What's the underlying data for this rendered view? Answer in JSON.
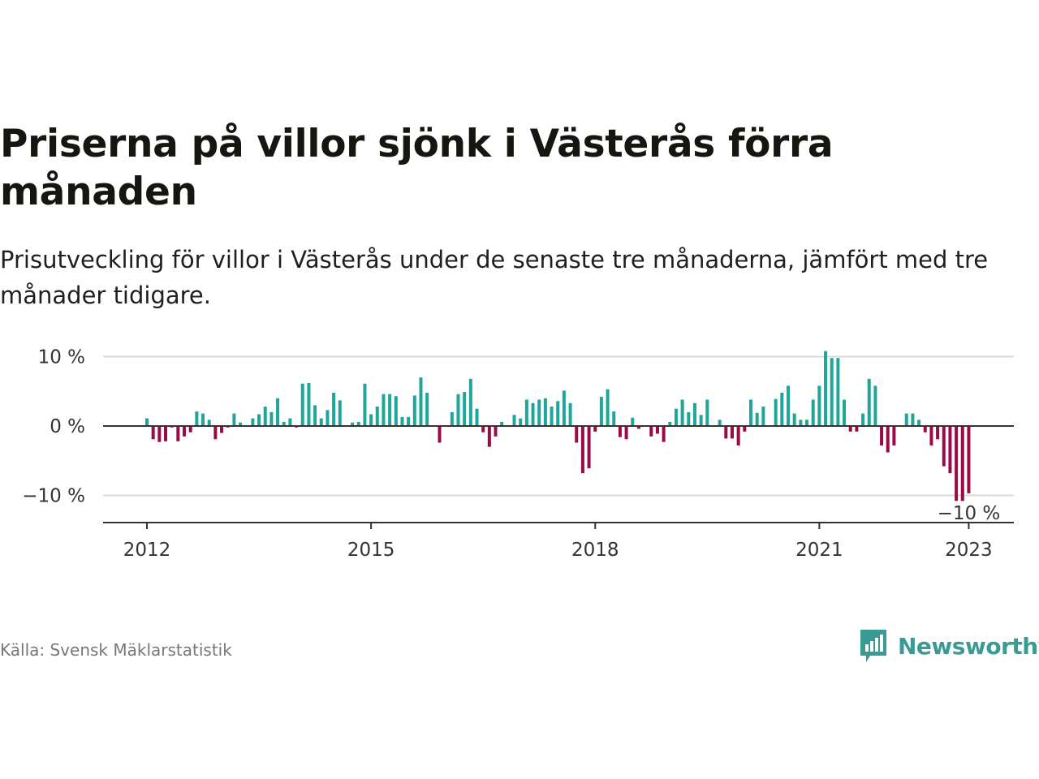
{
  "header": {
    "title": "Priserna på villor sjönk i Västerås förra månaden",
    "subtitle": "Prisutveckling för villor i Västerås under de senaste tre månaderna, jämfört med tre månader tidigare."
  },
  "footer": {
    "source": "Källa: Svensk Mäklarstatistik",
    "brand": "Newsworthy"
  },
  "colors": {
    "positive": "#1fa69b",
    "negative": "#990a46",
    "grid": "#d9d9d9",
    "zero_line": "#333333",
    "brand": "#3a9b94"
  },
  "chart_data": {
    "type": "bar",
    "title": "Priserna på villor sjönk i Västerås förra månaden",
    "subtitle": "Prisutveckling för villor i Västerås under de senaste tre månaderna, jämfört med tre månader tidigare.",
    "xlabel": "",
    "ylabel": "",
    "x_start": "2012-01",
    "x_end": "2023-01",
    "x_ticks": [
      "2012",
      "2015",
      "2018",
      "2021",
      "2023"
    ],
    "y_ticks": [
      {
        "value": 10,
        "label": "10 %"
      },
      {
        "value": 0,
        "label": "0 %"
      },
      {
        "value": -10,
        "label": "−10 %"
      }
    ],
    "ylim": [
      -14,
      11
    ],
    "grid": true,
    "annotation": {
      "x": "2023-01",
      "label": "−10 %"
    },
    "series": [
      {
        "values": [
          1.1,
          -1.9,
          -2.3,
          -2.2,
          -0.2,
          -2.2,
          -1.5,
          -0.9,
          2.1,
          1.8,
          0.9,
          -1.9,
          -1.0,
          -0.2,
          1.8,
          0.5,
          -0.1,
          1.1,
          1.7,
          2.8,
          2.0,
          4.0,
          0.6,
          1.1,
          -0.2,
          6.1,
          6.2,
          3.0,
          1.1,
          2.3,
          4.8,
          3.7,
          -0.1,
          0.5,
          0.6,
          6.1,
          1.7,
          2.8,
          4.6,
          4.6,
          4.3,
          1.3,
          1.3,
          4.4,
          7.0,
          4.8,
          0.1,
          -2.4,
          -0.1,
          2.0,
          4.6,
          4.9,
          6.8,
          2.5,
          -0.9,
          -3.0,
          -1.5,
          0.6,
          0.0,
          1.6,
          1.1,
          3.8,
          3.3,
          3.8,
          4.0,
          2.8,
          3.6,
          5.1,
          3.3,
          -2.4,
          -6.8,
          -6.1,
          -0.8,
          4.2,
          5.3,
          2.1,
          -1.6,
          -1.9,
          1.2,
          -0.4,
          0.0,
          -1.5,
          -1.1,
          -2.3,
          0.6,
          2.5,
          3.8,
          2.0,
          3.3,
          1.6,
          3.8,
          0.0,
          0.9,
          -1.8,
          -1.8,
          -2.8,
          -0.8,
          3.8,
          1.9,
          2.8,
          0.0,
          3.9,
          4.8,
          5.8,
          1.8,
          0.9,
          0.9,
          3.8,
          5.8,
          10.8,
          9.8,
          9.8,
          3.8,
          -0.8,
          -0.8,
          1.8,
          6.8,
          5.8,
          -2.8,
          -3.8,
          -2.8,
          0.0,
          1.8,
          1.8,
          0.9,
          -0.9,
          -2.8,
          -1.9,
          -5.8,
          -6.8,
          -10.8,
          -10.8,
          -9.7
        ]
      }
    ]
  }
}
